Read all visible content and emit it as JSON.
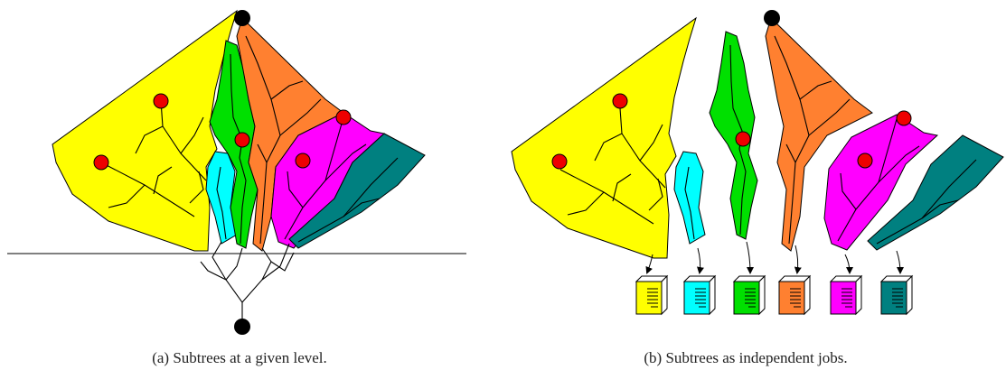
{
  "captions": {
    "a": "(a) Subtrees at a given level.",
    "b": "(b) Subtrees as independent jobs."
  }
}
